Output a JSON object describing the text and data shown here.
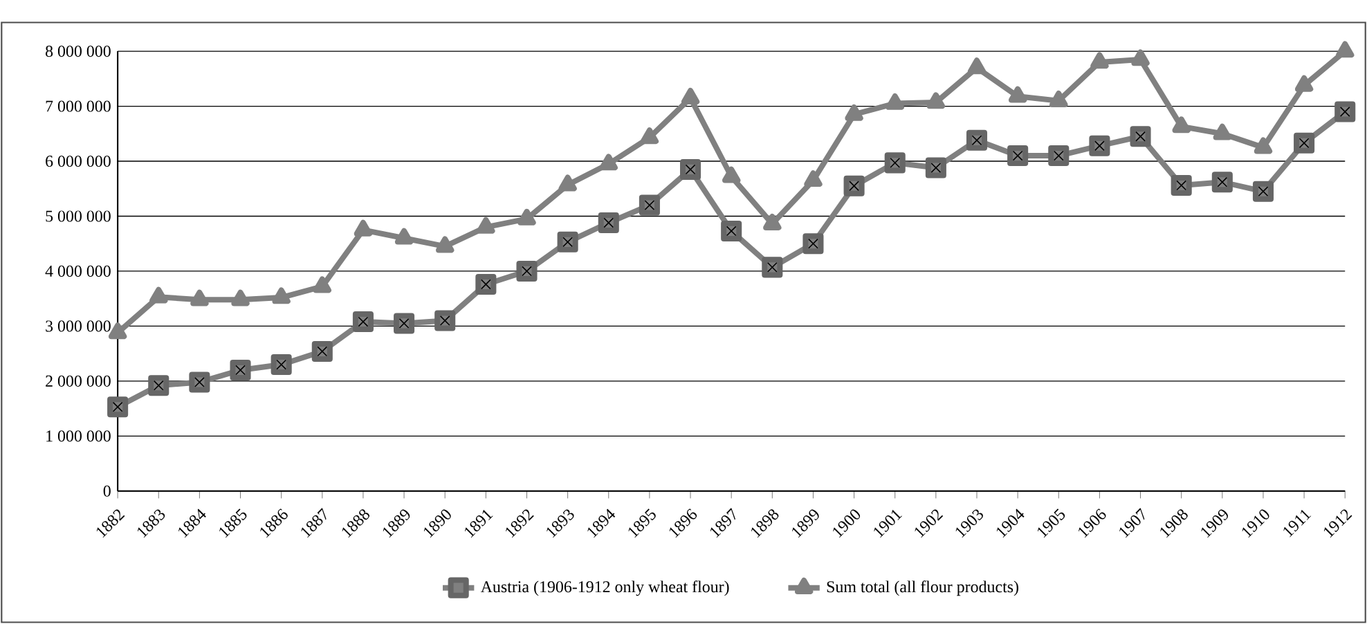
{
  "chart_data": {
    "type": "line",
    "categories": [
      "1882",
      "1883",
      "1884",
      "1885",
      "1886",
      "1887",
      "1888",
      "1889",
      "1890",
      "1891",
      "1892",
      "1893",
      "1894",
      "1895",
      "1896",
      "1897",
      "1898",
      "1899",
      "1900",
      "1901",
      "1902",
      "1903",
      "1904",
      "1905",
      "1906",
      "1907",
      "1908",
      "1909",
      "1910",
      "1911",
      "1912"
    ],
    "series": [
      {
        "name": "Austria (1906-1912 only wheat flour)",
        "color": "#808080",
        "marker": "square",
        "values": [
          1530000,
          1920000,
          1980000,
          2200000,
          2300000,
          2540000,
          3080000,
          3050000,
          3100000,
          3760000,
          4000000,
          4530000,
          4880000,
          5200000,
          5850000,
          4730000,
          4070000,
          4500000,
          5550000,
          5970000,
          5880000,
          6380000,
          6100000,
          6100000,
          6280000,
          6450000,
          5560000,
          5620000,
          5450000,
          6330000,
          6900000
        ]
      },
      {
        "name": "Sum total (all flour products)",
        "color": "#808080",
        "marker": "triangle",
        "values": [
          2880000,
          3530000,
          3480000,
          3480000,
          3520000,
          3720000,
          4750000,
          4600000,
          4450000,
          4800000,
          4950000,
          5570000,
          5950000,
          6430000,
          7150000,
          5720000,
          4860000,
          5650000,
          6850000,
          7050000,
          7070000,
          7700000,
          7180000,
          7100000,
          7800000,
          7850000,
          6630000,
          6500000,
          6250000,
          7380000,
          8000000
        ]
      }
    ],
    "ylim": [
      0,
      8000000
    ],
    "yticks": [
      0,
      {
        "value": 1000000,
        "label": "1 000 000"
      },
      {
        "value": 2000000,
        "label": "2 000 000"
      },
      {
        "value": 3000000,
        "label": "3 000 000"
      },
      {
        "value": 4000000,
        "label": "4 000 000"
      },
      {
        "value": 5000000,
        "label": "5 000 000"
      },
      {
        "value": 6000000,
        "label": "6 000 000"
      },
      {
        "value": 7000000,
        "label": "7 000 000"
      },
      {
        "value": 8000000,
        "label": "8 000 000"
      }
    ],
    "grid": "y",
    "legend": "bottom",
    "line_style": "solid"
  }
}
